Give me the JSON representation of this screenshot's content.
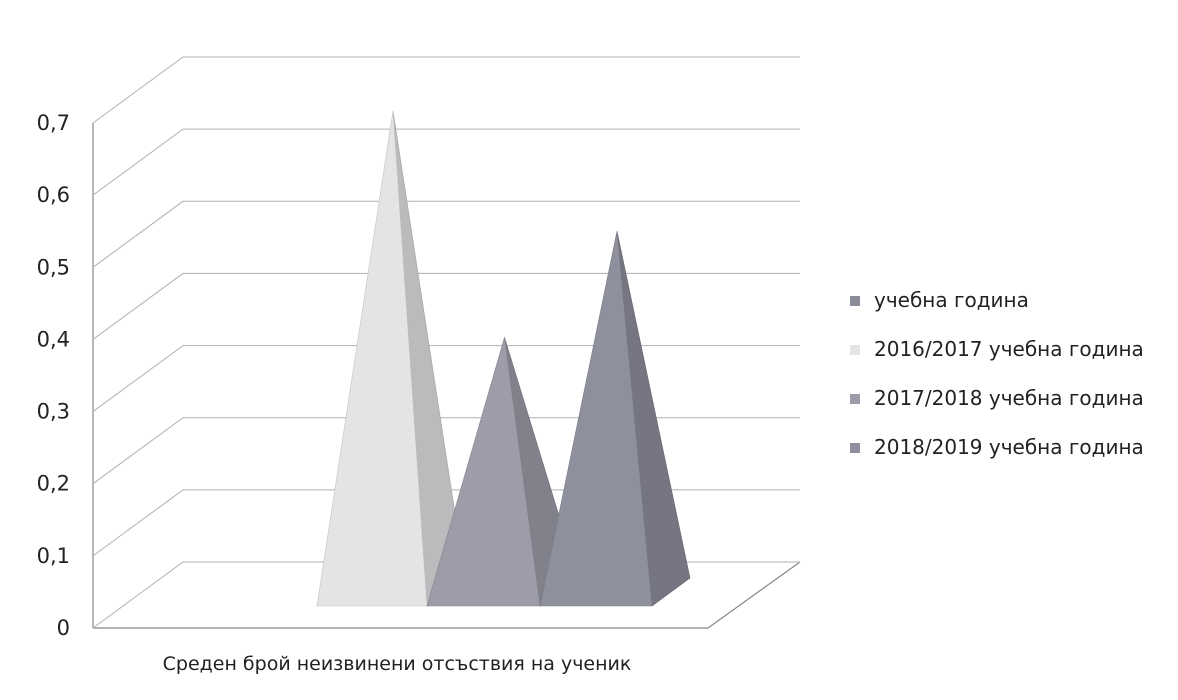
{
  "chart_data": {
    "type": "bar",
    "shape": "3d-pyramid",
    "categories": [
      "Среден брой неизвинени отсъствия на ученик"
    ],
    "series": [
      {
        "name": "учебна година",
        "values": [
          0
        ],
        "color": "#8a8d99"
      },
      {
        "name": "2016/2017 учебна година",
        "values": [
          0.7
        ],
        "color": "#e3e4e6"
      },
      {
        "name": "2017/2018 учебна година",
        "values": [
          0.38
        ],
        "color": "#9c9da8"
      },
      {
        "name": "2018/2019 учебна година",
        "values": [
          0.53
        ],
        "color": "#8f909d"
      }
    ],
    "yticks": [
      "0",
      "0,1",
      "0,2",
      "0,3",
      "0,4",
      "0,5",
      "0,6",
      "0,7"
    ],
    "ylim": [
      0,
      0.7
    ],
    "grid": true,
    "legend_position": "right",
    "title": "",
    "xlabel": "",
    "ylabel": ""
  }
}
